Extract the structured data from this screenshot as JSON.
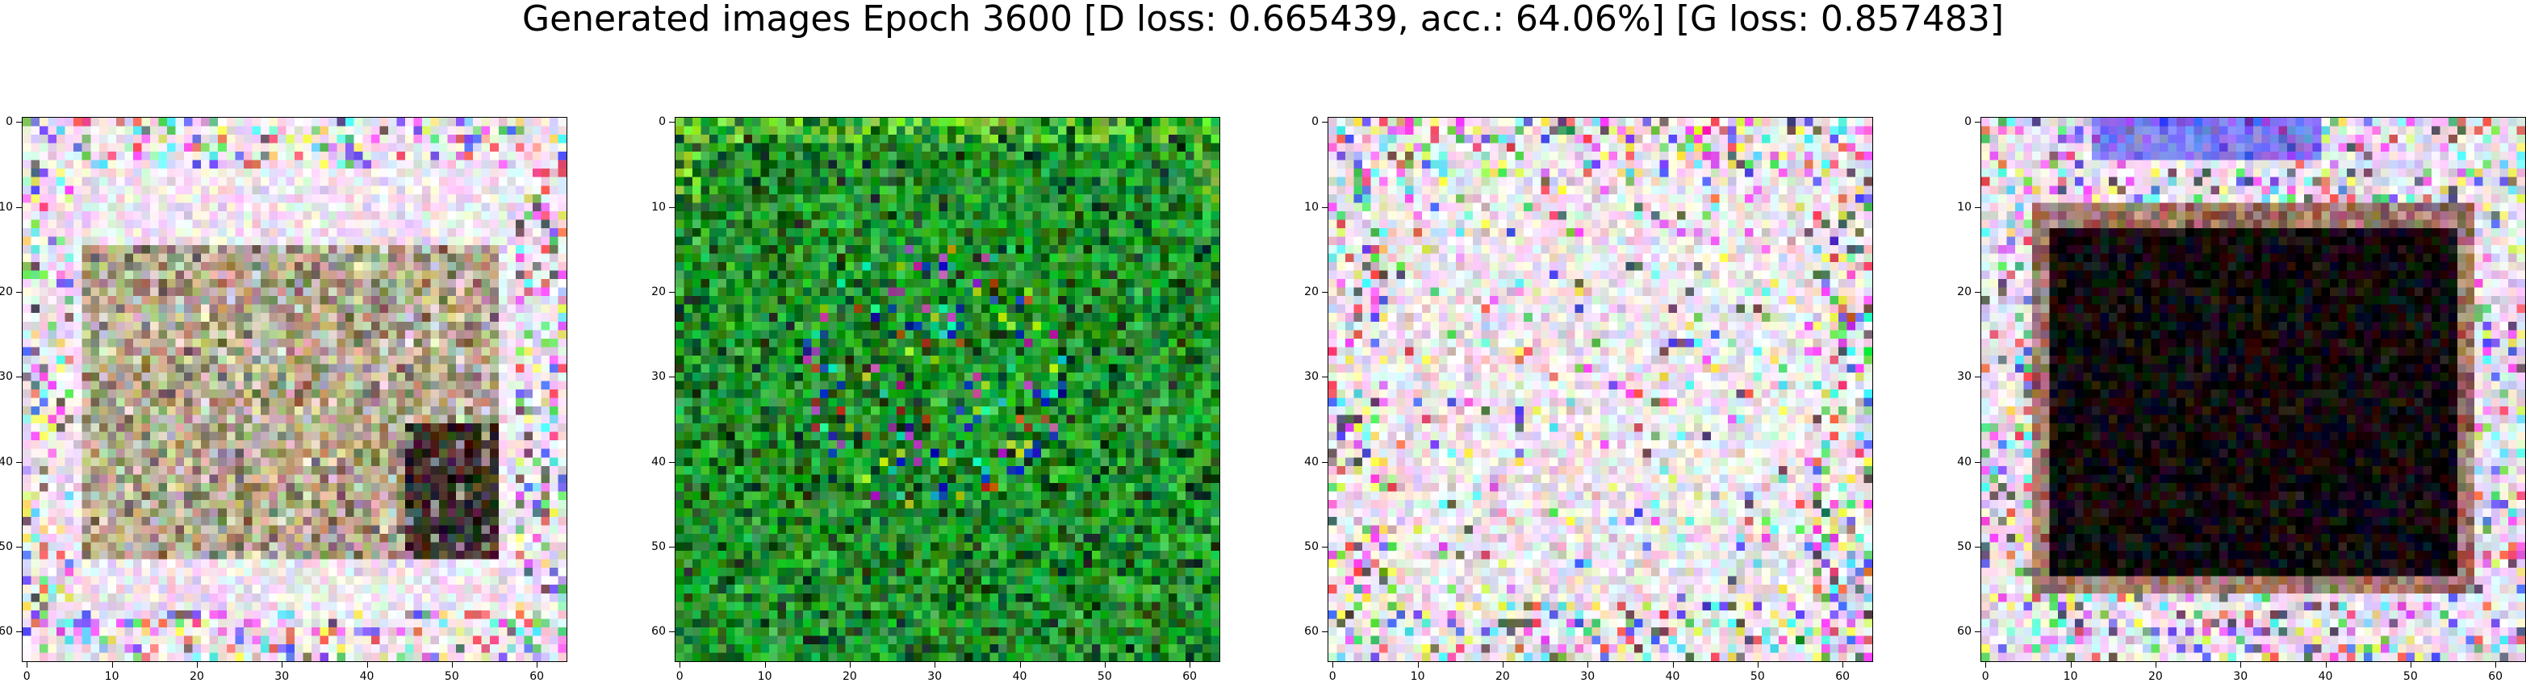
{
  "figure": {
    "title": "Generated images Epoch 3600 [D loss: 0.665439, acc.: 64.06%] [G loss: 0.857483]"
  },
  "axis": {
    "x_ticks": [
      "0",
      "10",
      "20",
      "30",
      "40",
      "50",
      "60"
    ],
    "y_ticks": [
      "0",
      "10",
      "20",
      "30",
      "40",
      "50",
      "60"
    ],
    "pixel_range": [
      0,
      64
    ]
  },
  "images": [
    {
      "name": "generated-sample-1",
      "palette": "pastel noise with olive-brown interior",
      "colors": [
        "#f4f0f4",
        "#a08f5a",
        "#5a4a24",
        "#e6c7ec"
      ]
    },
    {
      "name": "generated-sample-2",
      "palette": "green noise",
      "colors": [
        "#1e9a2a",
        "#0f5c14",
        "#43c14f",
        "#0b2d10"
      ]
    },
    {
      "name": "generated-sample-3",
      "palette": "pastel white-pink noise",
      "colors": [
        "#f6eef4",
        "#e3c8e8",
        "#d2a59a",
        "#bfe4f0"
      ]
    },
    {
      "name": "generated-sample-4",
      "palette": "pastel border with dark center block",
      "colors": [
        "#f1e6f0",
        "#0a0608",
        "#e7bfe6",
        "#c8d8ef"
      ]
    }
  ]
}
